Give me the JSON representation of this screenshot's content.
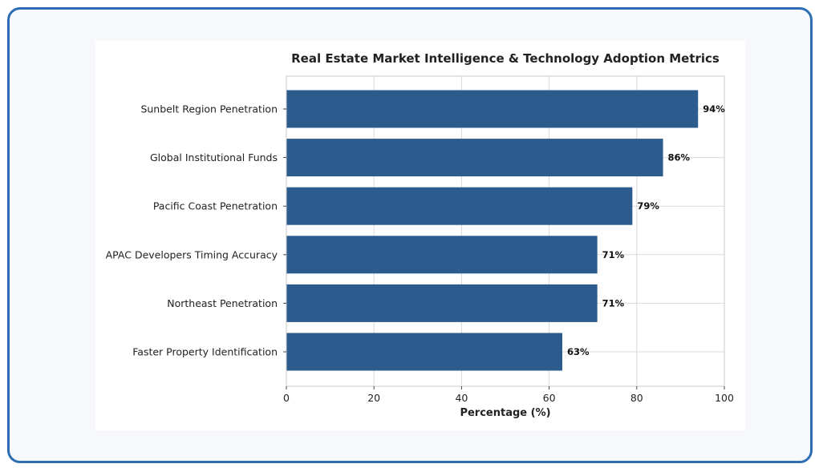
{
  "chart_data": {
    "type": "bar",
    "orientation": "horizontal",
    "title": "Real Estate Market Intelligence & Technology Adoption Metrics",
    "xlabel": "Percentage (%)",
    "ylabel": "",
    "xlim": [
      0,
      100
    ],
    "xticks": [
      "0",
      "20",
      "40",
      "60",
      "80",
      "100"
    ],
    "categories": [
      "Sunbelt Region Penetration",
      "Global Institutional Funds",
      "Pacific Coast Penetration",
      "APAC Developers Timing Accuracy",
      "Northeast Penetration",
      "Faster Property Identification"
    ],
    "values": [
      94,
      86,
      79,
      71,
      71,
      63
    ],
    "value_labels": [
      "94%",
      "86%",
      "79%",
      "71%",
      "71%",
      "63%"
    ],
    "bar_color": "#2c5b8e",
    "grid": true
  }
}
